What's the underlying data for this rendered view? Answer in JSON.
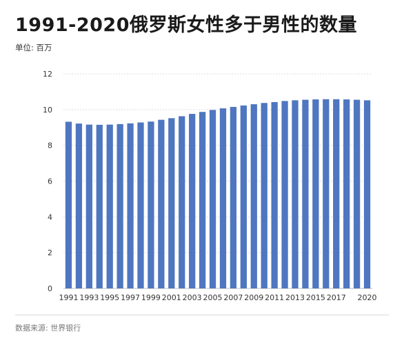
{
  "chart_data": {
    "type": "bar",
    "title": "1991-2020俄罗斯女性多于男性的数量",
    "subtitle": "单位: 百万",
    "source": "数据来源: 世界银行",
    "categories": [
      "1991",
      "1992",
      "1993",
      "1994",
      "1995",
      "1996",
      "1997",
      "1998",
      "1999",
      "2000",
      "2001",
      "2002",
      "2003",
      "2004",
      "2005",
      "2006",
      "2007",
      "2008",
      "2009",
      "2010",
      "2011",
      "2012",
      "2013",
      "2014",
      "2015",
      "2016",
      "2017",
      "2018",
      "2019",
      "2020"
    ],
    "x_tick_labels": [
      "1991",
      "1993",
      "1995",
      "1997",
      "1999",
      "2001",
      "2003",
      "2005",
      "2007",
      "2009",
      "2011",
      "2013",
      "2015",
      "2017",
      "2020"
    ],
    "values": [
      9.32,
      9.22,
      9.16,
      9.15,
      9.16,
      9.19,
      9.23,
      9.28,
      9.33,
      9.43,
      9.52,
      9.63,
      9.76,
      9.87,
      9.98,
      10.07,
      10.15,
      10.23,
      10.3,
      10.37,
      10.42,
      10.48,
      10.52,
      10.55,
      10.57,
      10.58,
      10.58,
      10.57,
      10.55,
      10.52
    ],
    "ylim": [
      0,
      12
    ],
    "y_ticks": [
      0,
      2,
      4,
      6,
      8,
      10,
      12
    ],
    "grid": true,
    "colors": {
      "bar": "#4f76c0",
      "grid": "#dddddd"
    }
  }
}
